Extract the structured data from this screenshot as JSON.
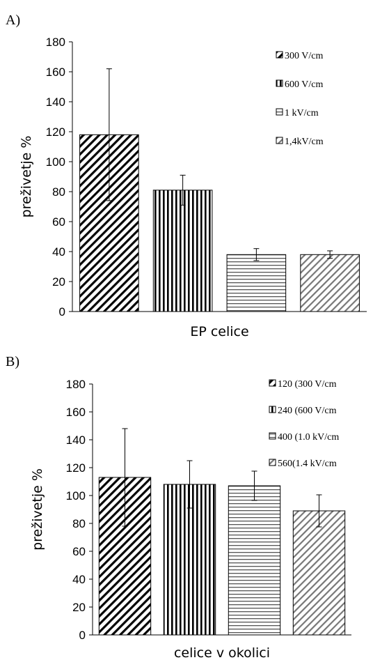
{
  "chart_data": [
    {
      "panel": "A)",
      "type": "bar",
      "xlabel": "EP celice",
      "ylabel": "preživetje %",
      "ylim": [
        0,
        180
      ],
      "yticks": [
        0,
        20,
        40,
        60,
        80,
        100,
        120,
        140,
        160,
        180
      ],
      "grid": false,
      "legend_position": "top-right",
      "series": [
        {
          "name": "300 V/cm",
          "value": 118,
          "error": 44,
          "pattern": "diagonal"
        },
        {
          "name": "600 V/cm",
          "value": 81,
          "error": 10,
          "pattern": "vertical"
        },
        {
          "name": "1 kV/cm",
          "value": 38,
          "error": 4,
          "pattern": "horizontal"
        },
        {
          "name": "1,4kV/cm",
          "value": 38,
          "error": 2.5,
          "pattern": "diagonal-gray"
        }
      ]
    },
    {
      "panel": "B)",
      "type": "bar",
      "xlabel": "celice v okolici",
      "ylabel": "preživetje %",
      "ylim": [
        0,
        180
      ],
      "yticks": [
        0,
        20,
        40,
        60,
        80,
        100,
        120,
        140,
        160,
        180
      ],
      "grid": false,
      "legend_position": "top-right",
      "series": [
        {
          "name": "120 (300 V/cm",
          "value": 113,
          "error": 35,
          "pattern": "diagonal"
        },
        {
          "name": "240 (600 V/cm",
          "value": 108,
          "error": 17,
          "pattern": "vertical"
        },
        {
          "name": "400 (1.0 kV/cm",
          "value": 107,
          "error": 10.5,
          "pattern": "horizontal"
        },
        {
          "name": "560(1.4 kV/cm",
          "value": 89,
          "error": 11.5,
          "pattern": "diagonal-gray"
        }
      ]
    }
  ]
}
